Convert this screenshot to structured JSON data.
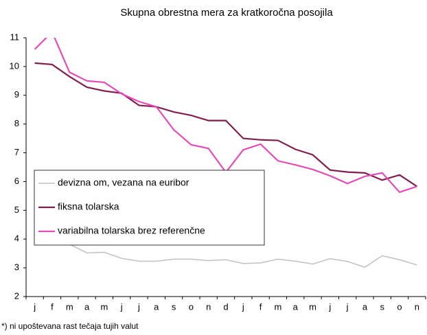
{
  "chart_data": {
    "type": "line",
    "title": "Skupna obrestna mera za kratkoročna posojila",
    "categories": [
      "j",
      "f",
      "m",
      "a",
      "m",
      "j",
      "j",
      "a",
      "s",
      "o",
      "n",
      "d",
      "j",
      "f",
      "m",
      "a",
      "m",
      "j",
      "j",
      "a",
      "s",
      "o",
      "n"
    ],
    "series": [
      {
        "name": "devizna om, vezana na euribor",
        "color": "#c0c0c0",
        "values": [
          3.93,
          3.85,
          3.82,
          3.52,
          3.54,
          3.33,
          3.23,
          3.23,
          3.3,
          3.3,
          3.25,
          3.28,
          3.15,
          3.17,
          3.3,
          3.23,
          3.13,
          3.32,
          3.22,
          3.02,
          3.42,
          3.28,
          3.1
        ]
      },
      {
        "name": "fiksna tolarska",
        "color": "#7f1f4d",
        "values": [
          10.12,
          10.07,
          9.65,
          9.28,
          9.15,
          9.07,
          8.65,
          8.6,
          8.42,
          8.3,
          8.12,
          8.12,
          7.5,
          7.45,
          7.43,
          7.12,
          6.93,
          6.4,
          6.33,
          6.3,
          6.05,
          6.23,
          5.83
        ]
      },
      {
        "name": "variabilna tolarska brez referenčne",
        "color": "#e34cb6",
        "values": [
          10.6,
          11.2,
          9.8,
          9.5,
          9.45,
          9.05,
          8.78,
          8.6,
          7.8,
          7.28,
          7.15,
          6.32,
          7.1,
          7.3,
          6.72,
          6.58,
          6.42,
          6.2,
          5.93,
          6.18,
          6.3,
          5.63,
          5.83
        ]
      }
    ],
    "ylim": [
      2,
      11
    ],
    "yticks": [
      2,
      3,
      4,
      5,
      6,
      7,
      8,
      9,
      10,
      11
    ],
    "grid": false,
    "legend": "lower left",
    "footnote": "*) ni upoštevana rast tečaja tujih valut"
  }
}
